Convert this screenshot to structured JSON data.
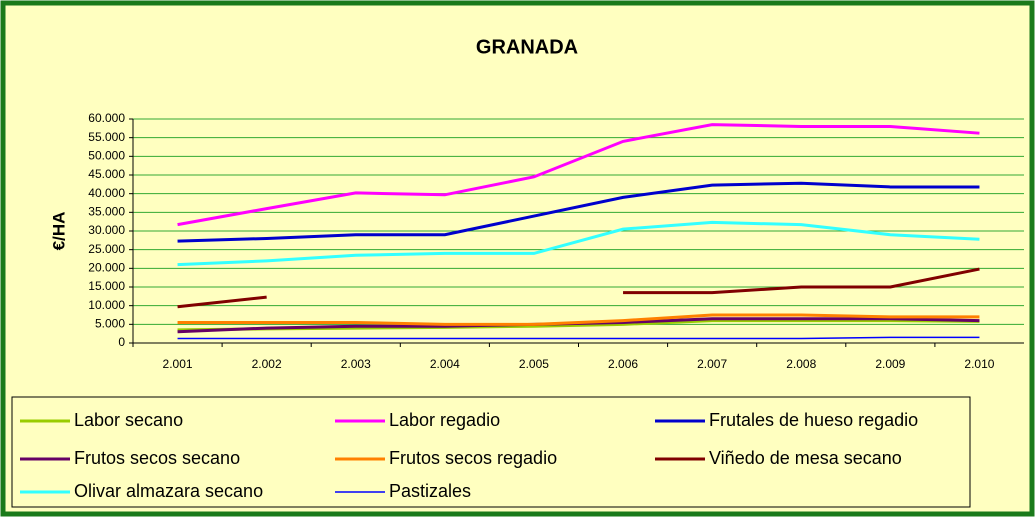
{
  "chart_data": {
    "type": "line",
    "title": "GRANADA",
    "y_label": "€/HA",
    "categories": [
      "2.001",
      "2.002",
      "2.003",
      "2.004",
      "2.005",
      "2.006",
      "2.007",
      "2.008",
      "2.009",
      "2.010"
    ],
    "ylim": [
      0,
      60000
    ],
    "yticks": [
      0,
      {
        "value": 5000,
        "label": "5.000"
      },
      {
        "value": 10000,
        "label": "10.000"
      },
      {
        "value": 15000,
        "label": "15.000"
      },
      {
        "value": 20000,
        "label": "20.000"
      },
      {
        "value": 25000,
        "label": "25.000"
      },
      {
        "value": 30000,
        "label": "30.000"
      },
      {
        "value": 35000,
        "label": "35.000"
      },
      {
        "value": 40000,
        "label": "40.000"
      },
      {
        "value": 45000,
        "label": "45.000"
      },
      {
        "value": 50000,
        "label": "50.000"
      },
      {
        "value": 55000,
        "label": "55.000"
      },
      {
        "value": 60000,
        "label": "60.000"
      }
    ],
    "grid": true,
    "series": [
      {
        "name": "Labor secano",
        "color": "#99cc00",
        "values": [
          3500,
          3800,
          4000,
          4200,
          4500,
          5000,
          6000,
          6000,
          6000,
          5800
        ]
      },
      {
        "name": "Labor regadio",
        "color": "#ff00ff",
        "values": [
          31700,
          36000,
          40200,
          39700,
          44500,
          54000,
          58500,
          58000,
          58000,
          56200
        ]
      },
      {
        "name": "Frutales de hueso regadio",
        "color": "#0000cc",
        "values": [
          27300,
          28000,
          29000,
          29000,
          34000,
          39000,
          42300,
          42800,
          41800,
          41800
        ]
      },
      {
        "name": "Frutos secos secano",
        "color": "#660066",
        "values": [
          3000,
          4000,
          4500,
          4500,
          5000,
          5500,
          6500,
          6500,
          6500,
          6000
        ]
      },
      {
        "name": "Frutos secos regadio",
        "color": "#ff8000",
        "values": [
          5500,
          5500,
          5500,
          5000,
          5000,
          6000,
          7500,
          7500,
          7000,
          7000
        ]
      },
      {
        "name": "Viñedo de mesa secano",
        "color": "#800000",
        "values": [
          9700,
          12300,
          null,
          null,
          null,
          13500,
          13500,
          15000,
          15000,
          19800
        ]
      },
      {
        "name": "Olivar almazara secano",
        "color": "#33ffff",
        "values": [
          21000,
          22000,
          23500,
          24000,
          24000,
          30500,
          32300,
          31700,
          29000,
          27800
        ]
      },
      {
        "name": "Pastizales",
        "color": "#0000ff",
        "values": [
          1200,
          1200,
          1200,
          1200,
          1200,
          1200,
          1200,
          1200,
          1500,
          1500
        ]
      }
    ]
  }
}
